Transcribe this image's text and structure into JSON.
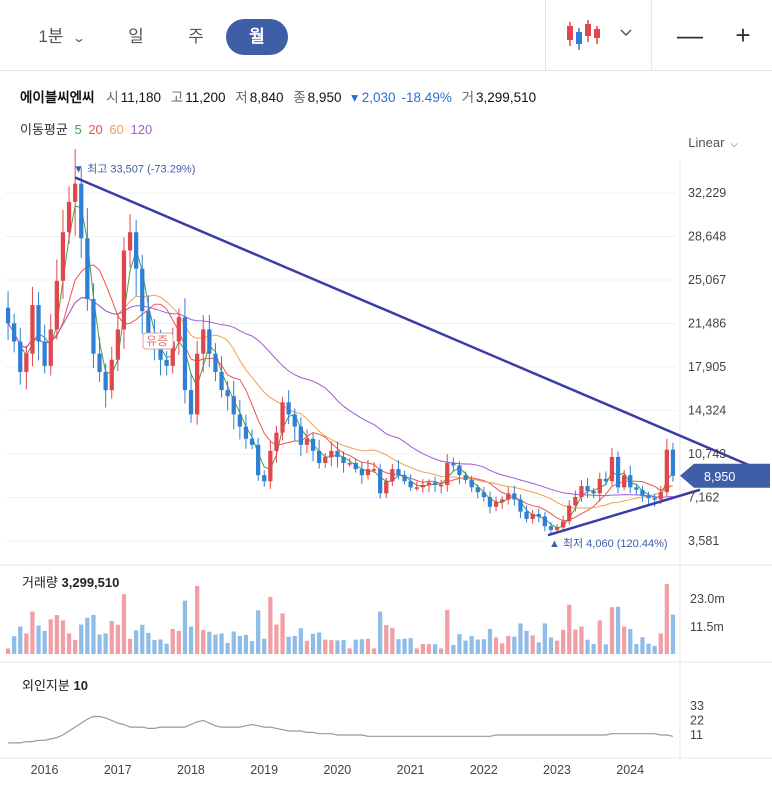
{
  "toolbar": {
    "timeframes": [
      "1분",
      "일",
      "주",
      "월"
    ],
    "active_timeframe": "월",
    "chart_type_icon": "candlestick-icon",
    "zoom_out": "—",
    "zoom_in": "+"
  },
  "quote": {
    "name": "에이블씨엔씨",
    "open_label": "시",
    "open": "11,180",
    "high_label": "고",
    "high": "11,200",
    "low_label": "저",
    "low": "8,840",
    "close_label": "종",
    "close": "8,950",
    "change": "▾ 2,030",
    "change_pct": "-18.49%",
    "volume_label": "거",
    "volume": "3,299,510"
  },
  "moving_averages": {
    "label": "이동평균",
    "periods": [
      "5",
      "20",
      "60",
      "120"
    ],
    "colors": [
      "#43a047",
      "#ef5350",
      "#f0a050",
      "#a05ad8"
    ]
  },
  "scale_mode": "Linear",
  "colors": {
    "up": "#e0474c",
    "down": "#2f7fd4",
    "trend": "#3c3ca8",
    "accent": "#3f5ea8"
  },
  "chart_data": {
    "type": "candlestick",
    "price_axis": {
      "ticks": [
        3581,
        7162,
        10743,
        14324,
        17905,
        21486,
        25067,
        28648,
        32229
      ],
      "labels": [
        "3,581",
        "7,162",
        "10,743",
        "14,324",
        "17,905",
        "21,486",
        "25,067",
        "28,648",
        "32,229"
      ]
    },
    "year_labels": [
      "2016",
      "2017",
      "2018",
      "2019",
      "2020",
      "2021",
      "2022",
      "2023",
      "2024"
    ],
    "current_price": 8950,
    "current_price_label": "8,950",
    "max_annotation": "▼ 최고 33,507 (-73.29%)",
    "min_annotation": "▲ 최저 4,060 (120.44%)",
    "event_marker": "유증",
    "max_price": 33507,
    "min_price": 4060,
    "monthly_close": [
      21500,
      20000,
      17500,
      19000,
      23000,
      20000,
      18000,
      21000,
      25000,
      29000,
      31500,
      33000,
      28500,
      23500,
      19000,
      17500,
      16000,
      18500,
      21000,
      27500,
      29000,
      26000,
      22500,
      20500,
      19500,
      18500,
      18000,
      20000,
      22000,
      16000,
      14000,
      19000,
      21000,
      19000,
      17500,
      16000,
      15500,
      14000,
      13000,
      12000,
      11500,
      9000,
      8500,
      11000,
      12500,
      15000,
      14000,
      13000,
      11500,
      12000,
      11000,
      10000,
      10500,
      11000,
      10500,
      10000,
      10000,
      9500,
      9000,
      9500,
      9500,
      7500,
      8500,
      9500,
      9000,
      8500,
      8000,
      8000,
      8200,
      8400,
      8200,
      8200,
      10000,
      9800,
      9000,
      8600,
      8000,
      7600,
      7200,
      6400,
      6800,
      7000,
      7500,
      7000,
      6000,
      5400,
      5800,
      5600,
      4800,
      4500,
      4700,
      5200,
      6500,
      7200,
      8100,
      7700,
      7500,
      8700,
      8500,
      10500,
      8000,
      9000,
      8000,
      7800,
      7300,
      7100,
      7000,
      7600,
      11100,
      8950
    ],
    "volume_axis": {
      "labels": [
        "23.0m",
        "11.5m"
      ]
    },
    "volume_title": "거래량",
    "volume_value": "3,299,510",
    "foreign_title": "외인지분",
    "foreign_value": "10",
    "foreign_axis": {
      "ticks": [
        11,
        22,
        33
      ],
      "labels": [
        "11",
        "22",
        "33"
      ]
    },
    "foreign_share": [
      5,
      5,
      5,
      6,
      6,
      7,
      7,
      8,
      9,
      11,
      14,
      17,
      20,
      23,
      25,
      25,
      24,
      22,
      20,
      19,
      17,
      17,
      17,
      16,
      16,
      17,
      17,
      17,
      17,
      17,
      19,
      21,
      22,
      20,
      18,
      17,
      17,
      17,
      17,
      18,
      19,
      18,
      17,
      17,
      16,
      15,
      14,
      14,
      14,
      13,
      13,
      12,
      12,
      12,
      11,
      11,
      11,
      11,
      11,
      10,
      10,
      10,
      10,
      10,
      10,
      10,
      10,
      10,
      10,
      10,
      10,
      10,
      10,
      10,
      10,
      10,
      10,
      10,
      10,
      10,
      11,
      11,
      11,
      11,
      11,
      11,
      11,
      11,
      11,
      11,
      11,
      11,
      11,
      11,
      11,
      11,
      11,
      11,
      11,
      12,
      12,
      12,
      12,
      12,
      12,
      12,
      12,
      11,
      11,
      10
    ]
  }
}
